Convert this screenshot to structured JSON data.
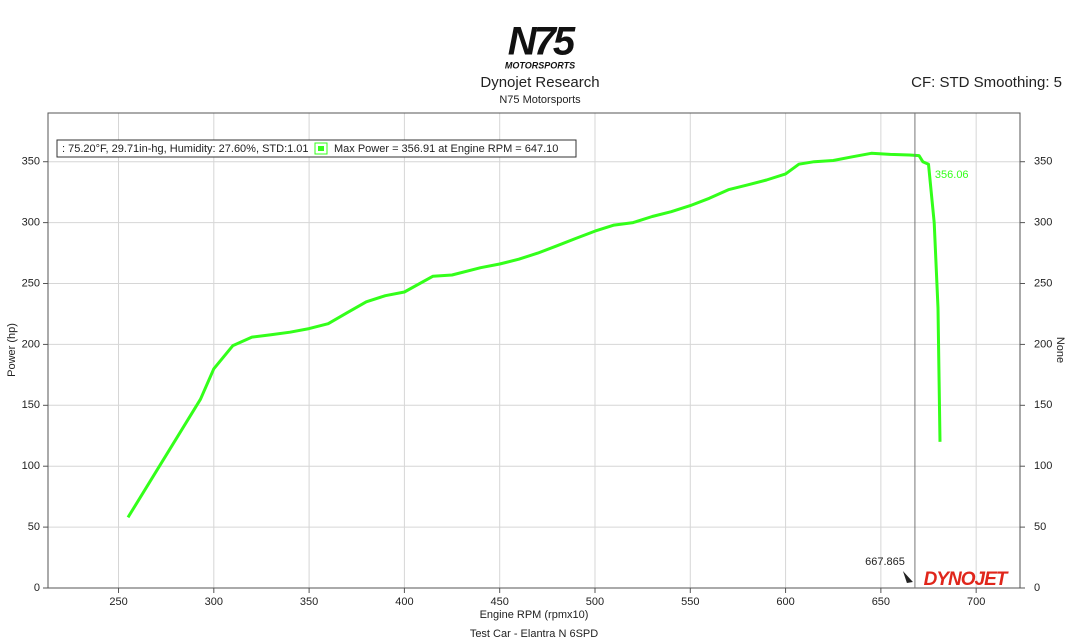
{
  "chart_data": {
    "type": "line",
    "logo": "N75",
    "logo_subtitle": "MOTORSPORTS",
    "title": "Dynojet Research",
    "subtitle": "N75 Motorsports",
    "settings_text": "CF: STD Smoothing: 5",
    "x_label": "Engine RPM (rpmx10)",
    "y_label": "Power (hp)",
    "y2_label": "None",
    "footer": "Test Car - Elantra N 6SPD",
    "conditions_text": ": 75.20°F, 29.71in-hg, Humidity: 27.60%, STD:1.01",
    "brand": "DYNOJET",
    "grid": true,
    "xlim": [
      213,
      723
    ],
    "ylim": [
      0,
      390
    ],
    "y2lim": [
      0,
      390
    ],
    "xticks": [
      250,
      300,
      350,
      400,
      450,
      500,
      550,
      600,
      650,
      700
    ],
    "yticks": [
      0,
      50,
      100,
      150,
      200,
      250,
      300,
      350
    ],
    "y2ticks": [
      0,
      50,
      100,
      150,
      200,
      250,
      300,
      350
    ],
    "x": [
      255,
      293,
      300,
      310,
      320,
      330,
      340,
      350,
      360,
      370,
      380,
      390,
      400,
      415,
      425,
      440,
      450,
      460,
      470,
      480,
      490,
      500,
      510,
      520,
      530,
      540,
      550,
      560,
      570,
      580,
      590,
      600,
      607,
      615,
      625,
      635,
      645,
      655,
      665,
      670,
      672,
      675,
      678,
      680,
      681
    ],
    "series": [
      {
        "name": "Max Power = 356.91 at Engine RPM = 647.10",
        "color": "#33ff1a",
        "values": [
          58,
          155,
          180,
          199,
          206,
          208,
          210,
          213,
          217,
          226,
          235,
          240,
          243,
          256,
          257,
          263,
          266,
          270,
          275,
          281,
          287,
          293,
          298,
          300,
          305,
          309,
          314,
          320,
          327,
          331,
          335,
          340,
          348,
          350,
          351,
          354,
          356.9,
          356,
          355.5,
          355,
          350,
          348,
          300,
          230,
          120
        ]
      }
    ],
    "cursor": {
      "x": 667.865,
      "value": 356.06
    }
  }
}
